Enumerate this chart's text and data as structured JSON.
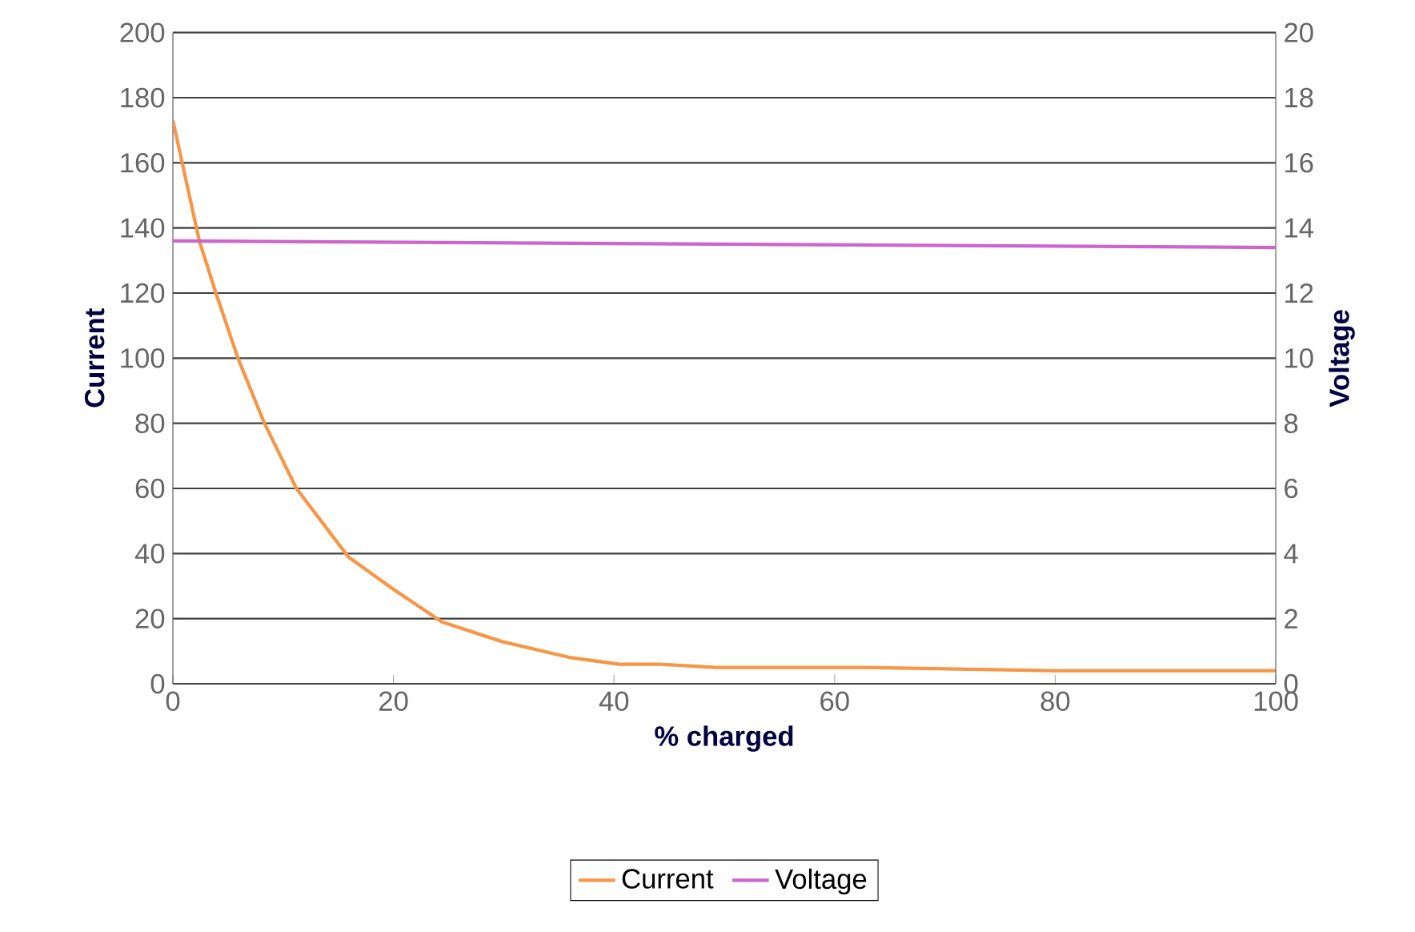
{
  "chart_data": {
    "type": "line",
    "xlabel": "% charged",
    "ylabel": "Current",
    "y2label": "Voltage",
    "xlim": [
      0,
      100
    ],
    "xticks": [
      0,
      20,
      40,
      60,
      80,
      100
    ],
    "ylim": [
      0,
      200
    ],
    "yticks": [
      0,
      20,
      40,
      60,
      80,
      100,
      120,
      140,
      160,
      180,
      200
    ],
    "y2lim": [
      0,
      20
    ],
    "y2ticks": [
      0,
      2,
      4,
      6,
      8,
      10,
      12,
      14,
      16,
      18,
      20
    ],
    "grid": "y",
    "legend": "bottom",
    "marker": "none",
    "line_style": "solid",
    "series": [
      {
        "name": "Current",
        "color": "#f79646",
        "x": [
          0,
          2.4,
          3.9,
          5.9,
          8.3,
          11.2,
          15.9,
          20,
          24.4,
          29.8,
          36.1,
          40.5,
          44.2,
          49.3,
          62.7,
          80,
          100
        ],
        "values": [
          173,
          136,
          120,
          100,
          80,
          60,
          39,
          29,
          19,
          13,
          8,
          6,
          6,
          5,
          5,
          4,
          4
        ]
      },
      {
        "name": "Voltage",
        "color": "#cc66cc",
        "axis": "y2",
        "x": [
          0,
          100
        ],
        "values": [
          13.6,
          13.4
        ]
      }
    ]
  }
}
